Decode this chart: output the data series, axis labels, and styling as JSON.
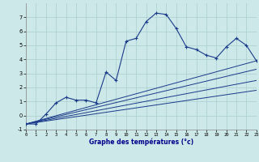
{
  "xlabel": "Graphe des températures (°c)",
  "background_color": "#cce8e8",
  "line_color": "#1a3a8a",
  "grid_color": "#aacece",
  "hours": [
    0,
    1,
    2,
    3,
    4,
    5,
    6,
    7,
    8,
    9,
    10,
    11,
    12,
    13,
    14,
    15,
    16,
    17,
    18,
    19,
    20,
    21,
    22,
    23
  ],
  "temps": [
    -0.6,
    -0.6,
    0.1,
    0.9,
    1.3,
    1.1,
    1.1,
    0.9,
    3.1,
    2.5,
    5.3,
    5.5,
    6.7,
    7.3,
    7.2,
    6.2,
    4.9,
    4.7,
    4.3,
    4.1,
    4.9,
    5.5,
    5.0,
    3.9
  ],
  "ylim": [
    -1,
    8
  ],
  "xlim": [
    0,
    23
  ],
  "yticks": [
    -1,
    0,
    1,
    2,
    3,
    4,
    5,
    6,
    7
  ],
  "xticks": [
    0,
    1,
    2,
    3,
    4,
    5,
    6,
    7,
    8,
    9,
    10,
    11,
    12,
    13,
    14,
    15,
    16,
    17,
    18,
    19,
    20,
    21,
    22,
    23
  ],
  "trend_lines": [
    {
      "x0": 0,
      "y0": -0.6,
      "x1": 23,
      "y1": 3.9
    },
    {
      "x0": 0,
      "y0": -0.6,
      "x1": 23,
      "y1": 3.3
    },
    {
      "x0": 0,
      "y0": -0.6,
      "x1": 23,
      "y1": 2.5
    },
    {
      "x0": 0,
      "y0": -0.6,
      "x1": 23,
      "y1": 1.8
    }
  ]
}
